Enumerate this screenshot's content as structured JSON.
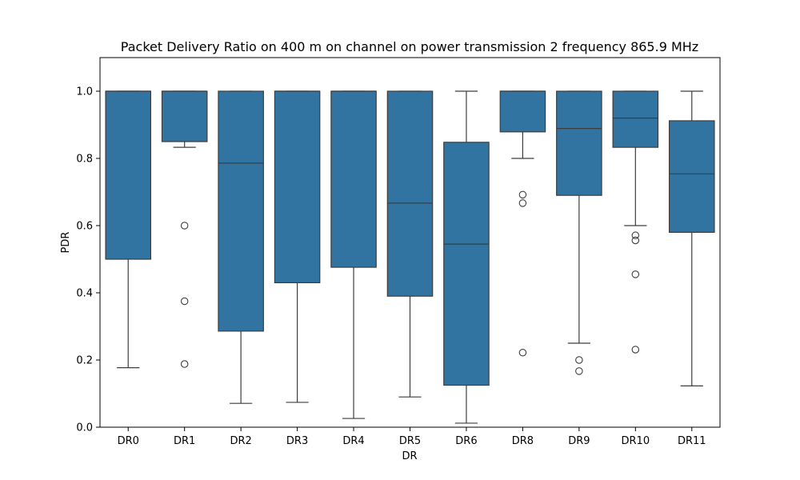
{
  "chart_data": {
    "type": "box",
    "title": "Packet Delivery Ratio on 400 m on channel on power transmission 2 frequency 865.9 MHz",
    "xlabel": "DR",
    "ylabel": "PDR",
    "ylim": [
      0,
      1.1
    ],
    "yticks": [
      0.0,
      0.2,
      0.4,
      0.6,
      0.8,
      1.0
    ],
    "ytick_labels": [
      "0.0",
      "0.2",
      "0.4",
      "0.6",
      "0.8",
      "1.0"
    ],
    "box_color": "#3274a1",
    "edge_color": "#3d3d3d",
    "categories": [
      "DR0",
      "DR1",
      "DR2",
      "DR3",
      "DR4",
      "DR5",
      "DR6",
      "DR8",
      "DR9",
      "DR10",
      "DR11"
    ],
    "boxes": [
      {
        "category": "DR0",
        "whisker_low": 0.177,
        "q1": 0.5,
        "median": 1.0,
        "q3": 1.0,
        "whisker_high": 1.0,
        "outliers": []
      },
      {
        "category": "DR1",
        "whisker_low": 0.833,
        "q1": 0.85,
        "median": 1.0,
        "q3": 1.0,
        "whisker_high": 1.0,
        "outliers": [
          0.6,
          0.375,
          0.188
        ]
      },
      {
        "category": "DR2",
        "whisker_low": 0.071,
        "q1": 0.286,
        "median": 0.786,
        "q3": 1.0,
        "whisker_high": 1.0,
        "outliers": []
      },
      {
        "category": "DR3",
        "whisker_low": 0.074,
        "q1": 0.43,
        "median": 1.0,
        "q3": 1.0,
        "whisker_high": 1.0,
        "outliers": []
      },
      {
        "category": "DR4",
        "whisker_low": 0.026,
        "q1": 0.476,
        "median": 1.0,
        "q3": 1.0,
        "whisker_high": 1.0,
        "outliers": []
      },
      {
        "category": "DR5",
        "whisker_low": 0.09,
        "q1": 0.39,
        "median": 0.667,
        "q3": 1.0,
        "whisker_high": 1.0,
        "outliers": []
      },
      {
        "category": "DR6",
        "whisker_low": 0.012,
        "q1": 0.125,
        "median": 0.545,
        "q3": 0.848,
        "whisker_high": 1.0,
        "outliers": []
      },
      {
        "category": "DR8",
        "whisker_low": 0.8,
        "q1": 0.879,
        "median": 1.0,
        "q3": 1.0,
        "whisker_high": 1.0,
        "outliers": [
          0.692,
          0.667,
          0.222
        ]
      },
      {
        "category": "DR9",
        "whisker_low": 0.25,
        "q1": 0.69,
        "median": 0.889,
        "q3": 1.0,
        "whisker_high": 1.0,
        "outliers": [
          0.2,
          0.167
        ]
      },
      {
        "category": "DR10",
        "whisker_low": 0.6,
        "q1": 0.833,
        "median": 0.92,
        "q3": 1.0,
        "whisker_high": 1.0,
        "outliers": [
          0.571,
          0.556,
          0.455,
          0.231
        ]
      },
      {
        "category": "DR11",
        "whisker_low": 0.123,
        "q1": 0.58,
        "median": 0.754,
        "q3": 0.912,
        "whisker_high": 1.0,
        "outliers": []
      }
    ]
  }
}
